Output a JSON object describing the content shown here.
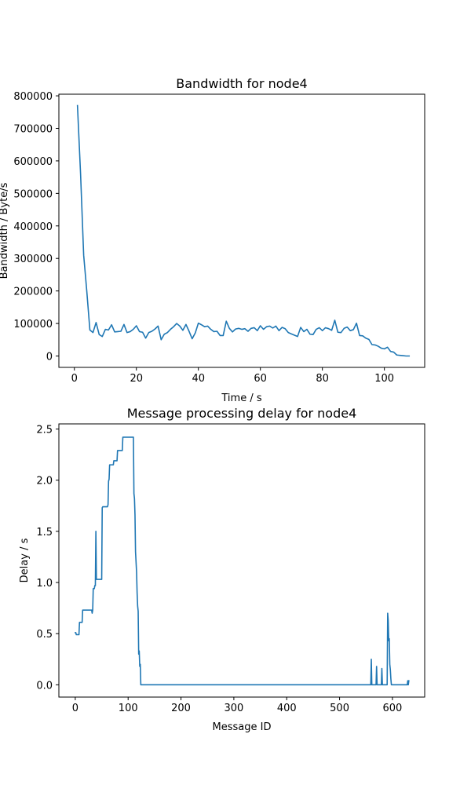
{
  "chart_data": [
    {
      "type": "line",
      "title": "Bandwidth for node4",
      "xlabel": "Time / s",
      "ylabel": "Bandwidth / Byte/s",
      "xlim": [
        -5,
        113
      ],
      "ylim": [
        -35000,
        805000
      ],
      "xticks": [
        0,
        20,
        40,
        60,
        80,
        100
      ],
      "yticks": [
        0,
        100000,
        200000,
        300000,
        400000,
        500000,
        600000,
        700000,
        800000
      ],
      "grid": false,
      "color": "#1f77b4",
      "series": [
        {
          "x": [
            1,
            2,
            3,
            4,
            5,
            6,
            7,
            8,
            9,
            10,
            11,
            12,
            13,
            14,
            15,
            16,
            17,
            18,
            19,
            20,
            21,
            22,
            23,
            24,
            25,
            26,
            27,
            28,
            29,
            30,
            31,
            32,
            33,
            34,
            35,
            36,
            37,
            38,
            39,
            40,
            41,
            42,
            43,
            44,
            45,
            46,
            47,
            48,
            49,
            50,
            51,
            52,
            53,
            54,
            55,
            56,
            57,
            58,
            59,
            60,
            61,
            62,
            63,
            64,
            65,
            66,
            67,
            68,
            69,
            70,
            71,
            72,
            73,
            74,
            75,
            76,
            77,
            78,
            79,
            80,
            81,
            82,
            83,
            84,
            85,
            86,
            87,
            88,
            89,
            90,
            91,
            92,
            93,
            94,
            95,
            96,
            97,
            98,
            99,
            100,
            101,
            102,
            103,
            104,
            105,
            106,
            107,
            108
          ],
          "values": [
            770000,
            560000,
            310000,
            200000,
            80000,
            72000,
            103000,
            66000,
            60000,
            82000,
            80000,
            96000,
            74000,
            75000,
            76000,
            97000,
            72000,
            75000,
            82000,
            93000,
            75000,
            73000,
            55000,
            72000,
            76000,
            83000,
            92000,
            50000,
            67000,
            72000,
            82000,
            90000,
            100000,
            92000,
            79000,
            97000,
            76000,
            53000,
            71000,
            101000,
            96000,
            90000,
            92000,
            82000,
            75000,
            76000,
            63000,
            63000,
            107000,
            85000,
            74000,
            83000,
            85000,
            82000,
            84000,
            76000,
            85000,
            87000,
            78000,
            93000,
            82000,
            90000,
            92000,
            86000,
            92000,
            78000,
            88000,
            84000,
            72000,
            68000,
            64000,
            60000,
            88000,
            75000,
            82000,
            67000,
            66000,
            82000,
            87000,
            78000,
            87000,
            84000,
            79000,
            110000,
            73000,
            72000,
            85000,
            89000,
            78000,
            81000,
            101000,
            63000,
            62000,
            55000,
            51000,
            35000,
            34000,
            30000,
            24000,
            22000,
            27000,
            14000,
            12000,
            3000,
            2000,
            1000,
            0,
            0
          ]
        }
      ]
    },
    {
      "type": "line",
      "title": "Message processing delay for node4",
      "xlabel": "Message ID",
      "ylabel": "Delay / s",
      "xlim": [
        -31,
        661
      ],
      "ylim": [
        -0.12,
        2.55
      ],
      "xticks": [
        0,
        100,
        200,
        300,
        400,
        500,
        600
      ],
      "yticks": [
        0.0,
        0.5,
        1.0,
        1.5,
        2.0,
        2.5
      ],
      "grid": false,
      "color": "#1f77b4",
      "series": [
        {
          "x": [
            0,
            1,
            2,
            3,
            4,
            5,
            6,
            7,
            8,
            9,
            10,
            11,
            12,
            13,
            14,
            15,
            16,
            17,
            18,
            19,
            20,
            21,
            22,
            23,
            24,
            25,
            26,
            27,
            28,
            29,
            30,
            31,
            32,
            33,
            34,
            35,
            36,
            37,
            38,
            39,
            40,
            41,
            42,
            43,
            44,
            45,
            46,
            47,
            48,
            49,
            50,
            51,
            52,
            53,
            54,
            55,
            56,
            57,
            58,
            59,
            60,
            61,
            62,
            63,
            64,
            65,
            66,
            67,
            68,
            69,
            70,
            71,
            72,
            73,
            74,
            75,
            76,
            77,
            78,
            79,
            80,
            81,
            82,
            83,
            84,
            85,
            86,
            87,
            88,
            89,
            90,
            91,
            92,
            93,
            94,
            95,
            96,
            97,
            98,
            99,
            100,
            101,
            102,
            103,
            104,
            105,
            106,
            107,
            108,
            109,
            110,
            111,
            112,
            113,
            114,
            115,
            116,
            117,
            118,
            119,
            120,
            121,
            122,
            123,
            124,
            125,
            126,
            127,
            128,
            129,
            130,
            131,
            132,
            150,
            200,
            250,
            300,
            350,
            400,
            450,
            500,
            550,
            558,
            559,
            560,
            561,
            562,
            565,
            566,
            567,
            568,
            569,
            570,
            571,
            572,
            575,
            576,
            577,
            578,
            579,
            580,
            581,
            582,
            588,
            589,
            590,
            591,
            592,
            593,
            594,
            595,
            596,
            597,
            598,
            599,
            600,
            610,
            620,
            628,
            629,
            630,
            631
          ],
          "values": [
            0.51,
            0.51,
            0.49,
            0.49,
            0.49,
            0.49,
            0.49,
            0.49,
            0.61,
            0.61,
            0.61,
            0.61,
            0.61,
            0.61,
            0.73,
            0.73,
            0.73,
            0.73,
            0.73,
            0.73,
            0.73,
            0.73,
            0.73,
            0.73,
            0.73,
            0.73,
            0.73,
            0.73,
            0.73,
            0.73,
            0.73,
            0.73,
            0.7,
            0.73,
            0.94,
            0.94,
            0.94,
            0.97,
            0.97,
            1.5,
            1.03,
            1.03,
            1.03,
            1.03,
            1.03,
            1.03,
            1.03,
            1.03,
            1.03,
            1.03,
            1.03,
            1.73,
            1.74,
            1.74,
            1.74,
            1.74,
            1.74,
            1.74,
            1.74,
            1.74,
            1.74,
            1.74,
            1.76,
            1.99,
            2.01,
            2.15,
            2.15,
            2.15,
            2.15,
            2.15,
            2.15,
            2.15,
            2.15,
            2.19,
            2.19,
            2.19,
            2.19,
            2.19,
            2.19,
            2.19,
            2.29,
            2.29,
            2.29,
            2.29,
            2.29,
            2.29,
            2.29,
            2.29,
            2.29,
            2.29,
            2.42,
            2.42,
            2.42,
            2.42,
            2.42,
            2.42,
            2.42,
            2.42,
            2.42,
            2.42,
            2.42,
            2.42,
            2.42,
            2.42,
            2.42,
            2.42,
            2.42,
            2.42,
            2.42,
            2.42,
            2.42,
            1.87,
            1.82,
            1.66,
            1.3,
            1.2,
            1.1,
            0.9,
            0.77,
            0.72,
            0.3,
            0.33,
            0.18,
            0.2,
            0.0,
            0.0,
            0.0,
            0.0,
            0.0,
            0.0,
            0.0,
            0.0,
            0.0,
            0.0,
            0.0,
            0.0,
            0.0,
            0.0,
            0.0,
            0.0,
            0.0,
            0.0,
            0.0,
            0.0,
            0.25,
            0.0,
            0.0,
            0.0,
            0.0,
            0.0,
            0.0,
            0.0,
            0.18,
            0.0,
            0.0,
            0.0,
            0.0,
            0.0,
            0.0,
            0.0,
            0.16,
            0.0,
            0.0,
            0.0,
            0.0,
            0.0,
            0.7,
            0.63,
            0.43,
            0.45,
            0.2,
            0.15,
            0.06,
            0.0,
            0.0,
            0.0,
            0.0,
            0.0,
            0.0,
            0.04,
            0.0,
            0.04
          ]
        }
      ]
    }
  ]
}
